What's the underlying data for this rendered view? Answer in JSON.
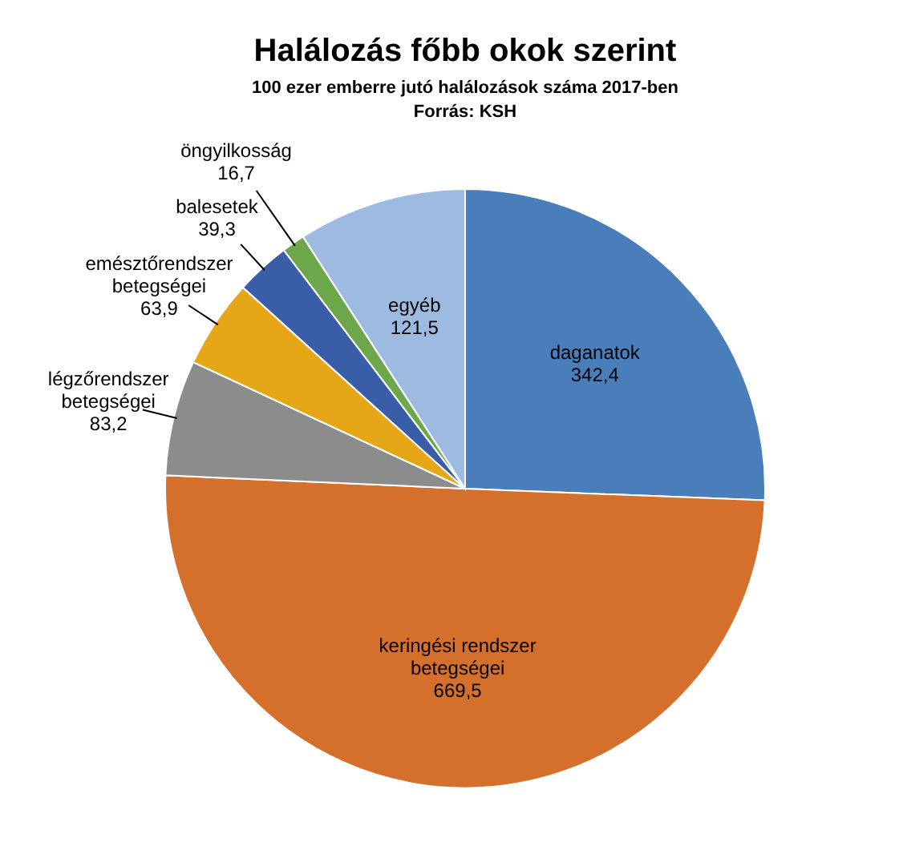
{
  "chart_data": {
    "type": "pie",
    "title": "Halálozás főbb okok szerint",
    "subtitle": "100 ezer emberre jutó halálozások  száma 2017-ben",
    "annotations": [
      "Forrás: KSH"
    ],
    "categories": [
      "daganatok",
      "keringési rendszer betegségei",
      "légzőrendszer betegségei",
      "emésztőrendszer betegségei",
      "balesetek",
      "öngyilkosság",
      "egyéb"
    ],
    "values": [
      342.4,
      669.5,
      83.2,
      63.9,
      39.3,
      16.7,
      121.5
    ],
    "value_labels": [
      "342,4",
      "669,5",
      "83,2",
      "63,9",
      "39,3",
      "16,7",
      "121,5"
    ],
    "colors": [
      "#4a7ebb",
      "#d4702b",
      "#8c8c8c",
      "#e5a617",
      "#3a5da8",
      "#6ca74b",
      "#9dbbe1"
    ]
  }
}
